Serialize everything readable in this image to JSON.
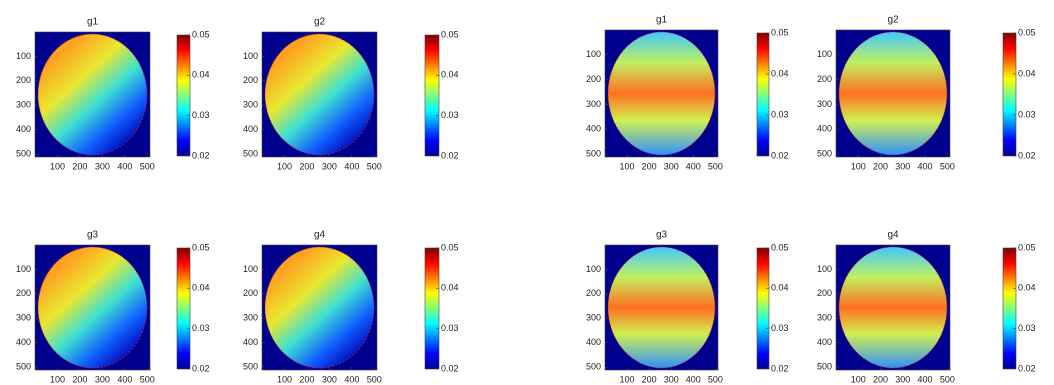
{
  "chart_data": [
    {
      "type": "heatmap",
      "title": "g1",
      "colormap": "jet",
      "xlim": [
        0,
        512
      ],
      "ylim": [
        0,
        512
      ],
      "xticks": [
        100,
        200,
        300,
        400,
        500
      ],
      "yticks": [
        100,
        200,
        300,
        400,
        500
      ],
      "clim": [
        0.02,
        0.05
      ],
      "cticks": [
        0.02,
        0.03,
        0.04,
        0.05
      ]
    },
    {
      "type": "heatmap",
      "title": "g2",
      "colormap": "jet",
      "xlim": [
        0,
        512
      ],
      "ylim": [
        0,
        512
      ],
      "xticks": [
        100,
        200,
        300,
        400,
        500
      ],
      "yticks": [
        100,
        200,
        300,
        400,
        500
      ],
      "clim": [
        0.02,
        0.05
      ],
      "cticks": [
        0.02,
        0.03,
        0.04,
        0.05
      ]
    },
    {
      "type": "heatmap",
      "title": "g3",
      "colormap": "jet",
      "xlim": [
        0,
        512
      ],
      "ylim": [
        0,
        512
      ],
      "xticks": [
        100,
        200,
        300,
        400,
        500
      ],
      "yticks": [
        100,
        200,
        300,
        400,
        500
      ],
      "clim": [
        0.02,
        0.05
      ],
      "cticks": [
        0.02,
        0.03,
        0.04,
        0.05
      ]
    },
    {
      "type": "heatmap",
      "title": "g4",
      "colormap": "jet",
      "xlim": [
        0,
        512
      ],
      "ylim": [
        0,
        512
      ],
      "xticks": [
        100,
        200,
        300,
        400,
        500
      ],
      "yticks": [
        100,
        200,
        300,
        400,
        500
      ],
      "clim": [
        0.02,
        0.05
      ],
      "cticks": [
        0.02,
        0.03,
        0.04,
        0.05
      ]
    },
    {
      "type": "heatmap",
      "title": "g1",
      "colormap": "jet",
      "xlim": [
        0,
        512
      ],
      "ylim": [
        0,
        512
      ],
      "xticks": [
        100,
        200,
        300,
        400,
        500
      ],
      "yticks": [
        100,
        200,
        300,
        400,
        500
      ],
      "clim": [
        0.02,
        0.05
      ],
      "cticks": [
        0.02,
        0.03,
        0.04,
        0.05
      ]
    },
    {
      "type": "heatmap",
      "title": "g2",
      "colormap": "jet",
      "xlim": [
        0,
        512
      ],
      "ylim": [
        0,
        512
      ],
      "xticks": [
        100,
        200,
        300,
        400,
        500
      ],
      "yticks": [
        100,
        200,
        300,
        400,
        500
      ],
      "clim": [
        0.02,
        0.05
      ],
      "cticks": [
        0.02,
        0.03,
        0.04,
        0.05
      ]
    },
    {
      "type": "heatmap",
      "title": "g3",
      "colormap": "jet",
      "xlim": [
        0,
        512
      ],
      "ylim": [
        0,
        512
      ],
      "xticks": [
        100,
        200,
        300,
        400,
        500
      ],
      "yticks": [
        100,
        200,
        300,
        400,
        500
      ],
      "clim": [
        0.02,
        0.05
      ],
      "cticks": [
        0.02,
        0.03,
        0.04,
        0.05
      ]
    },
    {
      "type": "heatmap",
      "title": "g4",
      "colormap": "jet",
      "xlim": [
        0,
        512
      ],
      "ylim": [
        0,
        512
      ],
      "xticks": [
        100,
        200,
        300,
        400,
        500
      ],
      "yticks": [
        100,
        200,
        300,
        400,
        500
      ],
      "clim": [
        0.02,
        0.05
      ],
      "cticks": [
        0.02,
        0.03,
        0.04,
        0.05
      ]
    }
  ]
}
